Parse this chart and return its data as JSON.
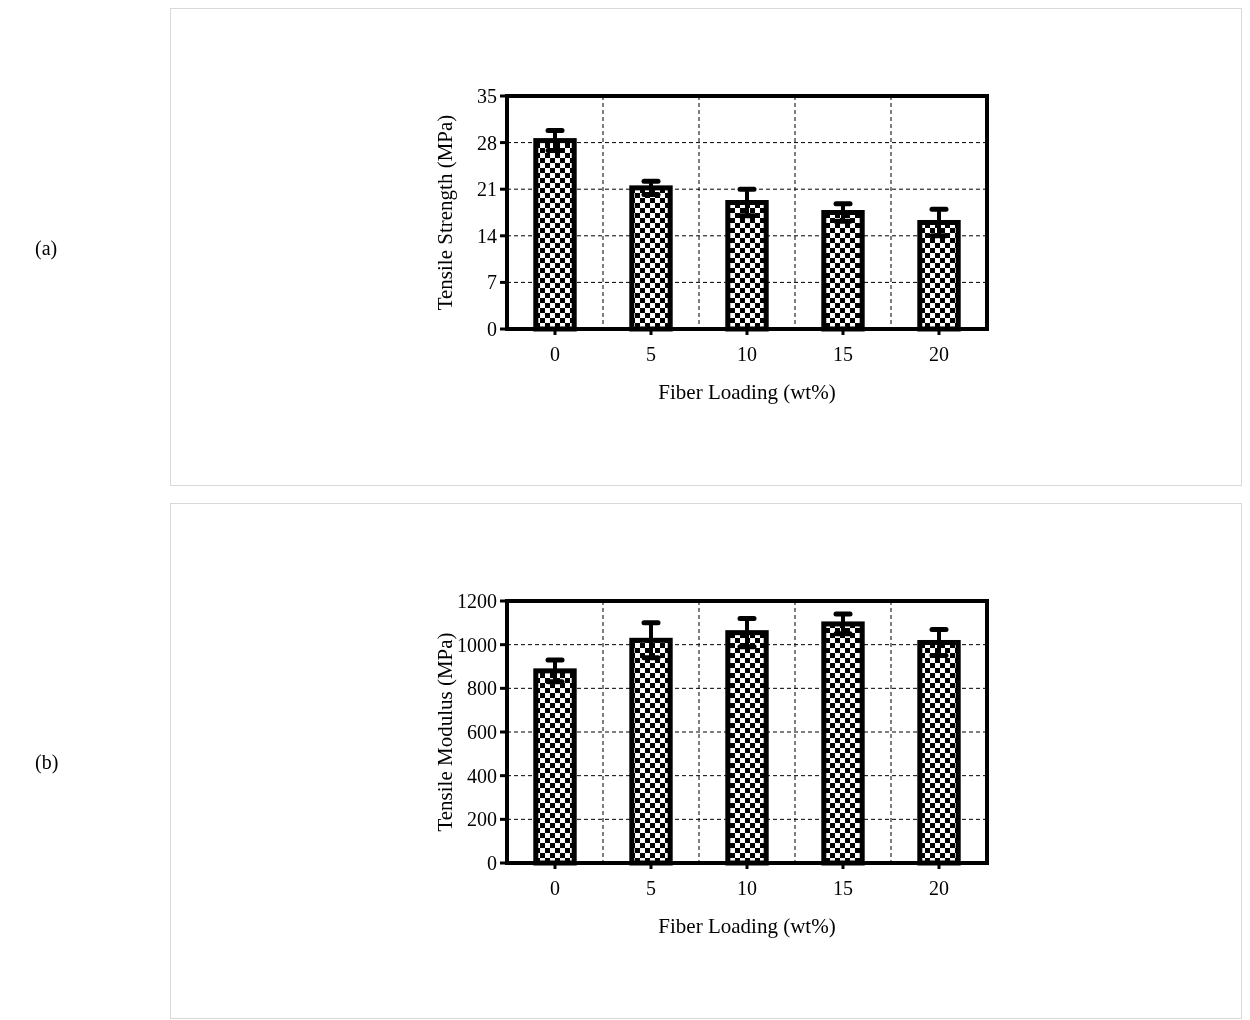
{
  "chart_data": [
    {
      "type": "bar",
      "categories": [
        "0",
        "5",
        "10",
        "15",
        "20"
      ],
      "values": [
        28.3,
        21.2,
        19.0,
        17.5,
        16.0
      ],
      "errors": [
        1.5,
        1.0,
        2.0,
        1.3,
        2.0
      ],
      "color": "#000000",
      "xlabel": "Fiber Loading (wt%)",
      "ylabel": "Tensile Strength (MPa)",
      "ylim": [
        0,
        35
      ],
      "yticks": [
        0,
        7,
        14,
        21,
        28,
        35
      ],
      "grid": true,
      "annotations": [
        "(a)"
      ]
    },
    {
      "type": "bar",
      "categories": [
        "0",
        "5",
        "10",
        "15",
        "20"
      ],
      "values": [
        880,
        1020,
        1055,
        1095,
        1010
      ],
      "errors": [
        50,
        80,
        65,
        45,
        60
      ],
      "color": "#000000",
      "xlabel": "Fiber Loading (wt%)",
      "ylabel": "Tensile Modulus (MPa)",
      "ylim": [
        0,
        1200
      ],
      "yticks": [
        0,
        200,
        400,
        600,
        800,
        1000,
        1200
      ],
      "grid": true,
      "annotations": [
        "(b)"
      ]
    }
  ]
}
